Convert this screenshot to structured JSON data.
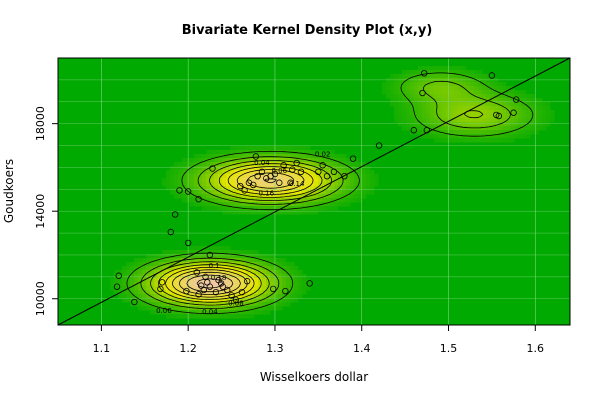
{
  "chart_data": {
    "type": "heatmap",
    "subtype": "bivariate-kernel-density-with-contours-and-scatter",
    "title": "Bivariate Kernel Density Plot (x,y)",
    "xlabel": "Wisselkoers dollar",
    "ylabel": "Goudkoers",
    "xlim": [
      1.05,
      1.64
    ],
    "ylim": [
      8800,
      21000
    ],
    "x_ticks": [
      1.1,
      1.2,
      1.3,
      1.4,
      1.5,
      1.6
    ],
    "x_tick_labels": [
      "1.1",
      "1.2",
      "1.3",
      "1.4",
      "1.5",
      "1.6"
    ],
    "y_ticks": [
      10000,
      14000,
      18000
    ],
    "y_tick_labels": [
      "10000",
      "14000",
      "18000"
    ],
    "grid": true,
    "colors": {
      "low": "#00aa00",
      "mid": "#e6e600",
      "high": "#f0c8a8",
      "background": "#ffffff",
      "contour": "#000000"
    },
    "contour_levels": [
      0.02,
      0.04,
      0.06,
      0.08,
      0.1,
      0.12,
      0.14,
      0.16,
      0.18
    ],
    "contour_labels": [
      {
        "text": "0.02",
        "x": 1.355,
        "y": 16500
      },
      {
        "text": "0.04",
        "x": 1.285,
        "y": 16100
      },
      {
        "text": "0.06",
        "x": 1.305,
        "y": 15750
      },
      {
        "text": "0.14",
        "x": 1.325,
        "y": 15150
      },
      {
        "text": "0.16",
        "x": 1.29,
        "y": 14720
      },
      {
        "text": "0.1",
        "x": 1.23,
        "y": 11400
      },
      {
        "text": "0.18",
        "x": 1.235,
        "y": 10850
      },
      {
        "text": "0.08",
        "x": 1.255,
        "y": 9700
      },
      {
        "text": "0.06",
        "x": 1.172,
        "y": 9350
      },
      {
        "text": "0.04",
        "x": 1.225,
        "y": 9300
      }
    ],
    "density_modes": [
      {
        "mx": 1.225,
        "my": 10700,
        "sx": 0.045,
        "sy": 650,
        "w": 1.0
      },
      {
        "mx": 1.295,
        "my": 15400,
        "sx": 0.05,
        "sy": 650,
        "w": 0.85
      },
      {
        "mx": 1.53,
        "my": 18400,
        "sx": 0.045,
        "sy": 650,
        "w": 0.32
      },
      {
        "mx": 1.49,
        "my": 19700,
        "sx": 0.035,
        "sy": 500,
        "w": 0.22
      }
    ],
    "regression_line": {
      "x": [
        1.05,
        1.64
      ],
      "y": [
        8800,
        21000
      ]
    },
    "points": [
      [
        1.118,
        10550
      ],
      [
        1.12,
        11050
      ],
      [
        1.138,
        9850
      ],
      [
        1.168,
        10450
      ],
      [
        1.17,
        10750
      ],
      [
        1.18,
        13050
      ],
      [
        1.185,
        13850
      ],
      [
        1.19,
        14950
      ],
      [
        1.198,
        10350
      ],
      [
        1.2,
        12550
      ],
      [
        1.2,
        14900
      ],
      [
        1.21,
        11200
      ],
      [
        1.212,
        14550
      ],
      [
        1.212,
        10200
      ],
      [
        1.215,
        10600
      ],
      [
        1.218,
        10400
      ],
      [
        1.22,
        11000
      ],
      [
        1.222,
        10750
      ],
      [
        1.225,
        10550
      ],
      [
        1.225,
        12000
      ],
      [
        1.228,
        15950
      ],
      [
        1.232,
        10300
      ],
      [
        1.235,
        10850
      ],
      [
        1.238,
        10700
      ],
      [
        1.24,
        10550
      ],
      [
        1.245,
        10400
      ],
      [
        1.25,
        10150
      ],
      [
        1.255,
        9950
      ],
      [
        1.26,
        15150
      ],
      [
        1.262,
        10300
      ],
      [
        1.265,
        14950
      ],
      [
        1.268,
        10800
      ],
      [
        1.27,
        15300
      ],
      [
        1.275,
        15200
      ],
      [
        1.278,
        16500
      ],
      [
        1.28,
        15600
      ],
      [
        1.285,
        15800
      ],
      [
        1.29,
        15500
      ],
      [
        1.295,
        15600
      ],
      [
        1.298,
        10450
      ],
      [
        1.3,
        15700
      ],
      [
        1.305,
        15300
      ],
      [
        1.31,
        16100
      ],
      [
        1.312,
        10350
      ],
      [
        1.318,
        15300
      ],
      [
        1.32,
        15900
      ],
      [
        1.325,
        16200
      ],
      [
        1.33,
        15800
      ],
      [
        1.34,
        10700
      ],
      [
        1.35,
        15800
      ],
      [
        1.355,
        16100
      ],
      [
        1.36,
        15600
      ],
      [
        1.368,
        15800
      ],
      [
        1.38,
        15600
      ],
      [
        1.39,
        16400
      ],
      [
        1.42,
        17000
      ],
      [
        1.46,
        17700
      ],
      [
        1.47,
        19400
      ],
      [
        1.472,
        20300
      ],
      [
        1.475,
        17700
      ],
      [
        1.55,
        20200
      ],
      [
        1.555,
        18400
      ],
      [
        1.558,
        18350
      ],
      [
        1.575,
        18500
      ],
      [
        1.578,
        19100
      ]
    ]
  }
}
